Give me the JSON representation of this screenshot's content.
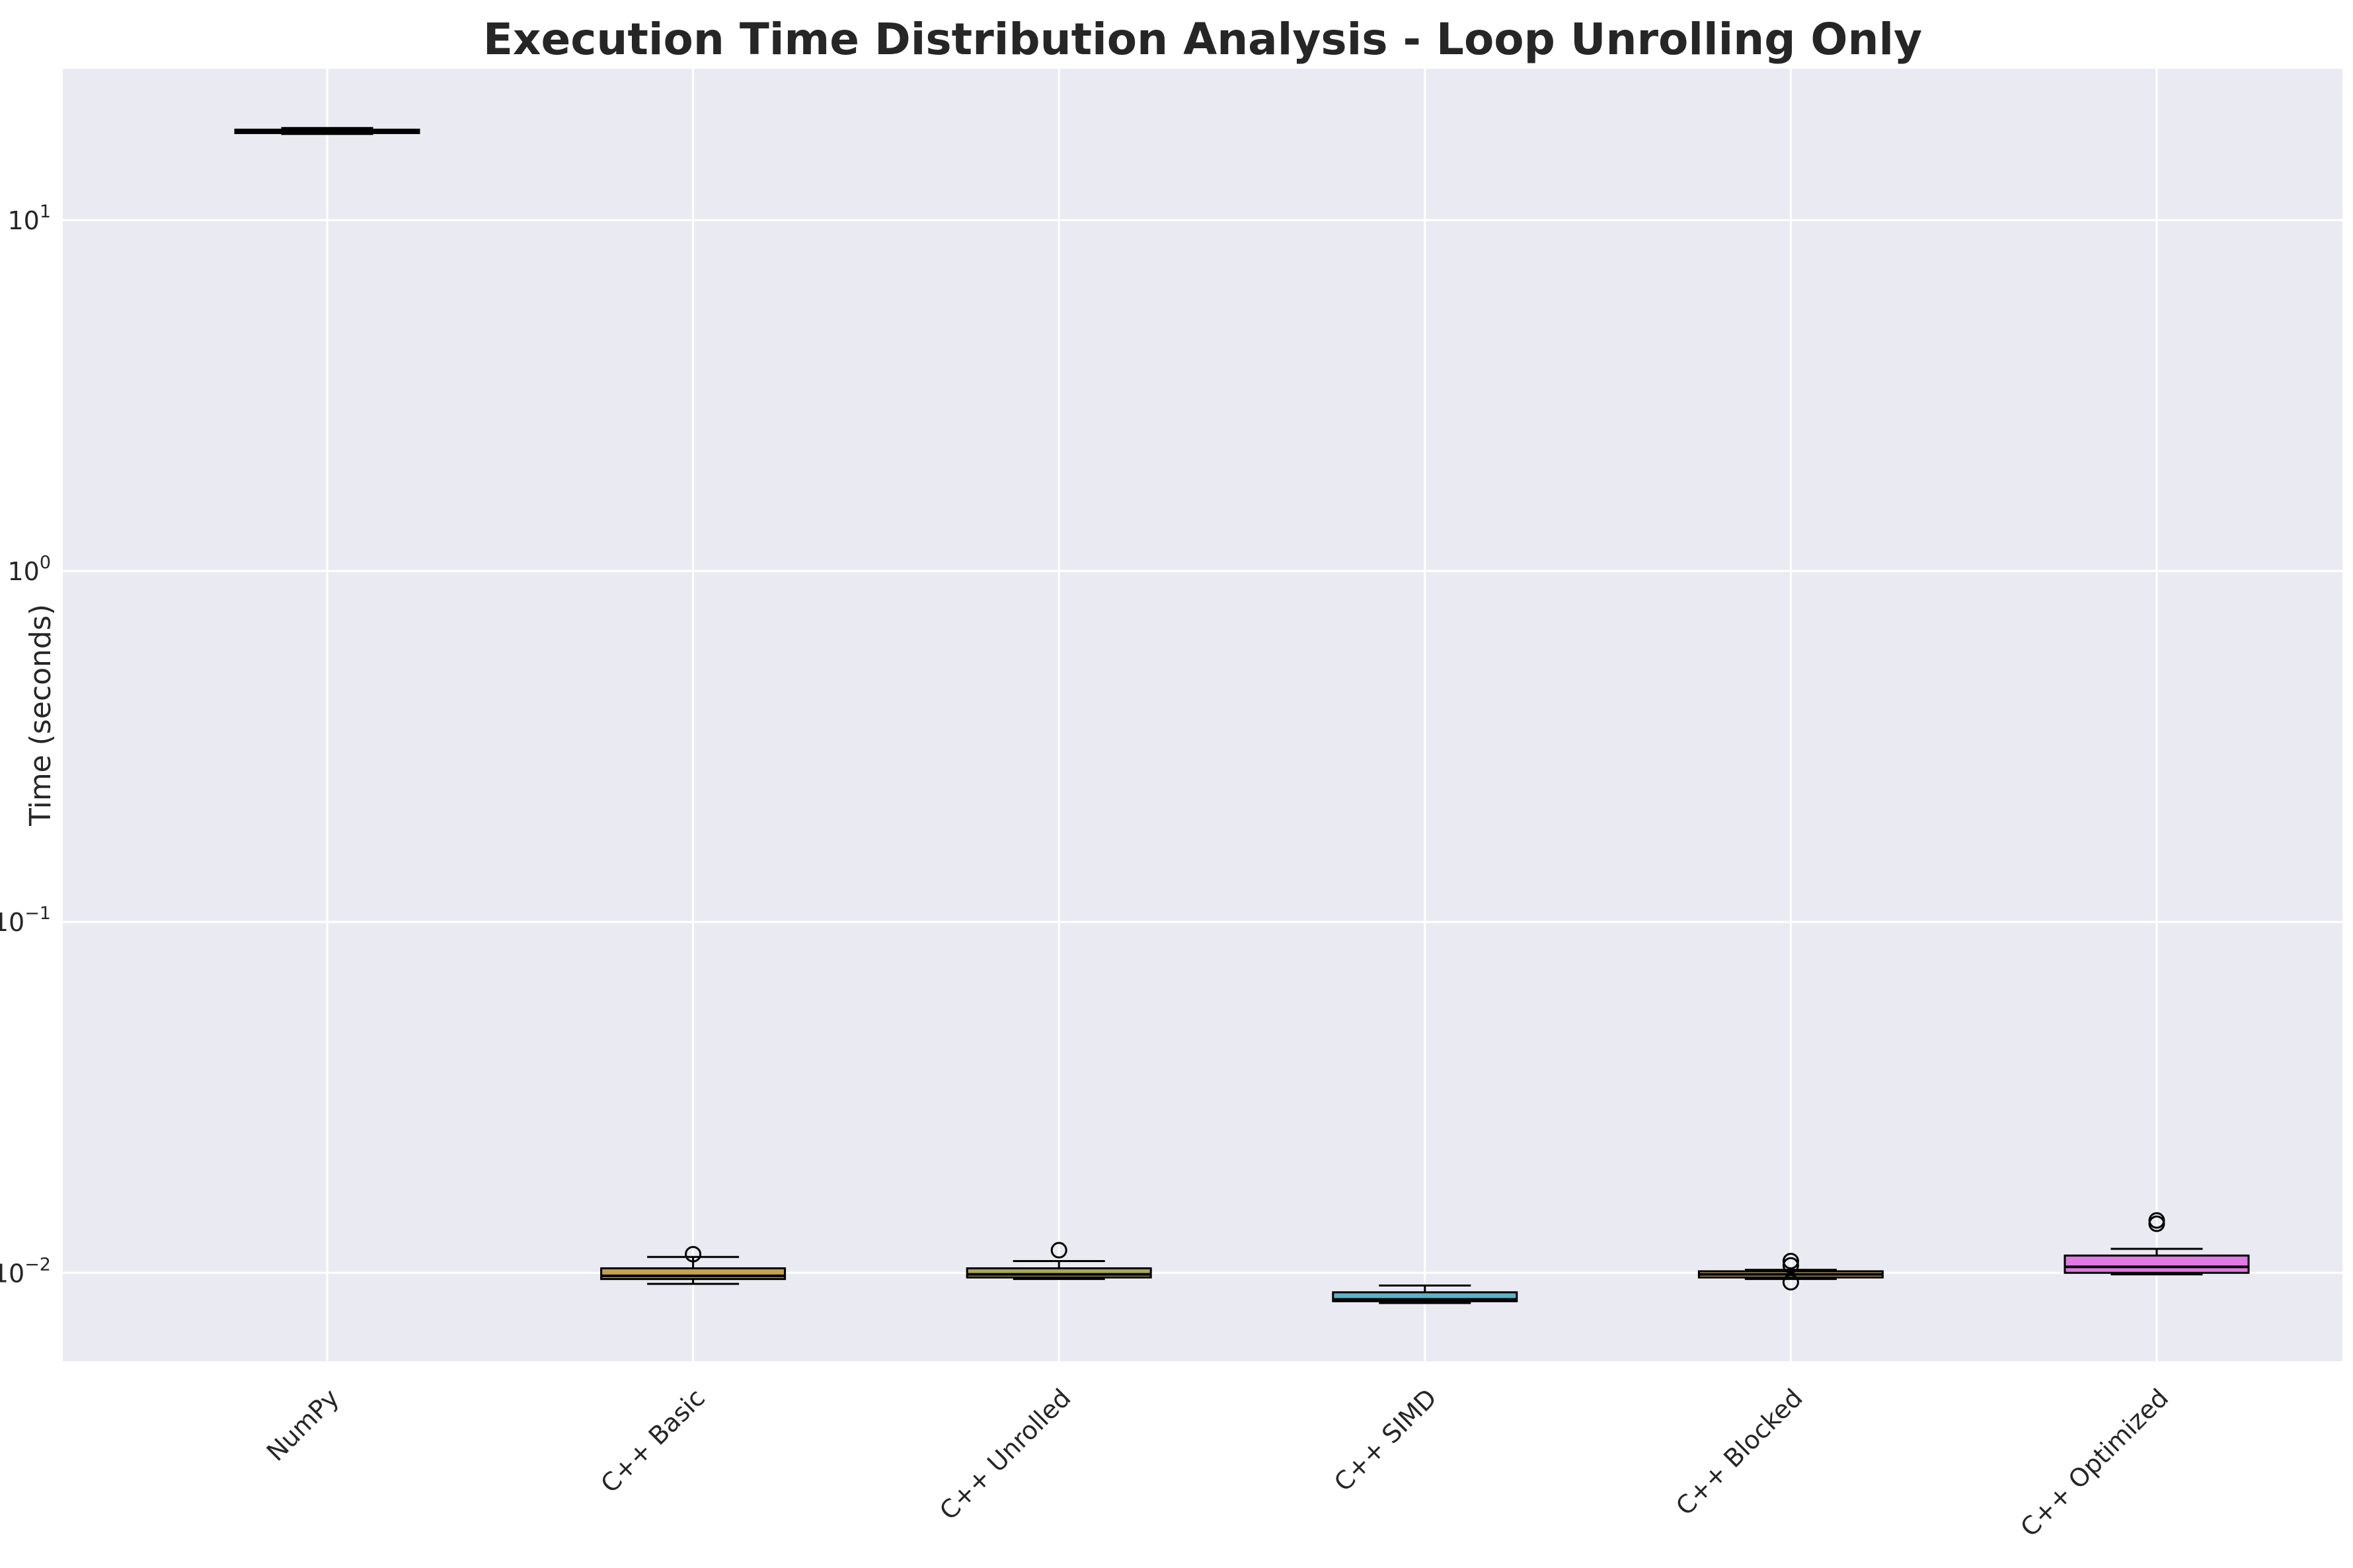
{
  "chart_data": {
    "type": "boxplot",
    "title": "Execution Time Distribution Analysis - Loop Unrolling Only",
    "xlabel": "",
    "ylabel": "Time (seconds)",
    "yscale": "log",
    "ylim": [
      0.0056,
      27
    ],
    "yticks": [
      {
        "value": 10,
        "base": "10",
        "exp": "1"
      },
      {
        "value": 1,
        "base": "10",
        "exp": "0"
      },
      {
        "value": 0.1,
        "base": "10",
        "exp": "−1"
      },
      {
        "value": 0.01,
        "base": "10",
        "exp": "−2"
      }
    ],
    "grid": true,
    "categories": [
      "NumPy",
      "C++ Basic",
      "C++ Unrolled",
      "C++ SIMD",
      "C++ Blocked",
      "C++ Optimized"
    ],
    "boxes": [
      {
        "name": "NumPy",
        "whislo": 17.6,
        "q1": 17.7,
        "med": 17.9,
        "q3": 18.1,
        "whishi": 18.3,
        "fliers": [],
        "color": "#c9a96a"
      },
      {
        "name": "C++ Basic",
        "whislo": 0.0093,
        "q1": 0.0096,
        "med": 0.0098,
        "q3": 0.0103,
        "whishi": 0.0111,
        "fliers": [
          0.0113
        ],
        "color": "#c4a24e"
      },
      {
        "name": "C++ Unrolled",
        "whislo": 0.0096,
        "q1": 0.0097,
        "med": 0.0099,
        "q3": 0.0103,
        "whishi": 0.0108,
        "fliers": [
          0.0116
        ],
        "color": "#a9a85a"
      },
      {
        "name": "C++ SIMD",
        "whislo": 0.0082,
        "q1": 0.0083,
        "med": 0.0084,
        "q3": 0.0088,
        "whishi": 0.0092,
        "fliers": [],
        "color": "#5ab4c8"
      },
      {
        "name": "C++ Blocked",
        "whislo": 0.0096,
        "q1": 0.0097,
        "med": 0.0099,
        "q3": 0.0101,
        "whishi": 0.0102,
        "fliers": [
          0.0094,
          0.0105,
          0.0108
        ],
        "color": "#c9b06e"
      },
      {
        "name": "C++ Optimized",
        "whislo": 0.0099,
        "q1": 0.01,
        "med": 0.0104,
        "q3": 0.0112,
        "whishi": 0.0117,
        "fliers": [
          0.0138,
          0.0141
        ],
        "color": "#e079e3"
      }
    ],
    "colors": {
      "plot_background": "#eaeaf2",
      "grid": "#ffffff",
      "outline": "#000000",
      "median": "#000000"
    }
  }
}
